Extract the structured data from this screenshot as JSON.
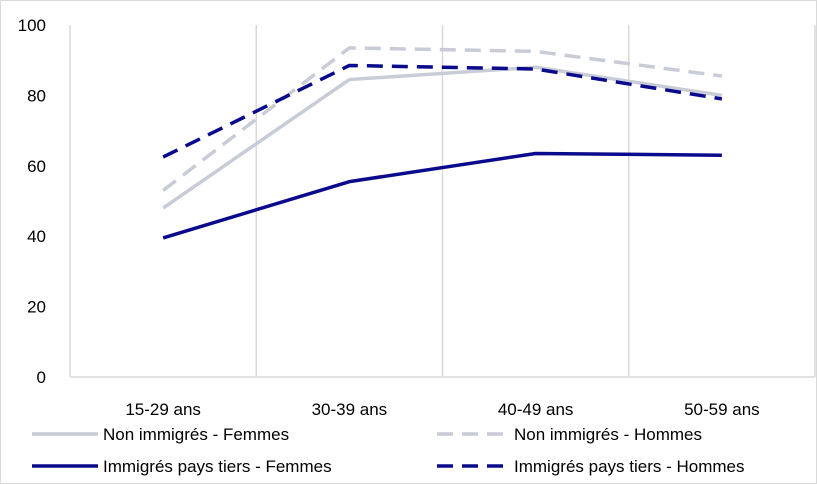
{
  "chart_data": {
    "type": "line",
    "title": "",
    "xlabel": "",
    "ylabel": "",
    "categories": [
      "15-29 ans",
      "30-39 ans",
      "40-49 ans",
      "50-59 ans"
    ],
    "ylim": [
      0,
      100
    ],
    "yticks": [
      0,
      20,
      40,
      60,
      80,
      100
    ],
    "grid": "vertical",
    "legend_position": "bottom",
    "series": [
      {
        "name": "Non immigrés - Femmes",
        "values": [
          48,
          84.5,
          88,
          80
        ],
        "color": "#c8ccd6",
        "dash": "solid"
      },
      {
        "name": "Non immigrés - Hommes",
        "values": [
          53,
          93.5,
          92.5,
          85.5
        ],
        "color": "#c8ccd6",
        "dash": "dashed"
      },
      {
        "name": "Immigrés pays tiers - Femmes",
        "values": [
          39.5,
          55.5,
          63.5,
          63
        ],
        "color": "#0a0a8c",
        "dash": "solid"
      },
      {
        "name": "Immigrés pays tiers - Hommes",
        "values": [
          62.5,
          88.5,
          87.5,
          79
        ],
        "color": "#0a0a8c",
        "dash": "dashed"
      }
    ]
  }
}
